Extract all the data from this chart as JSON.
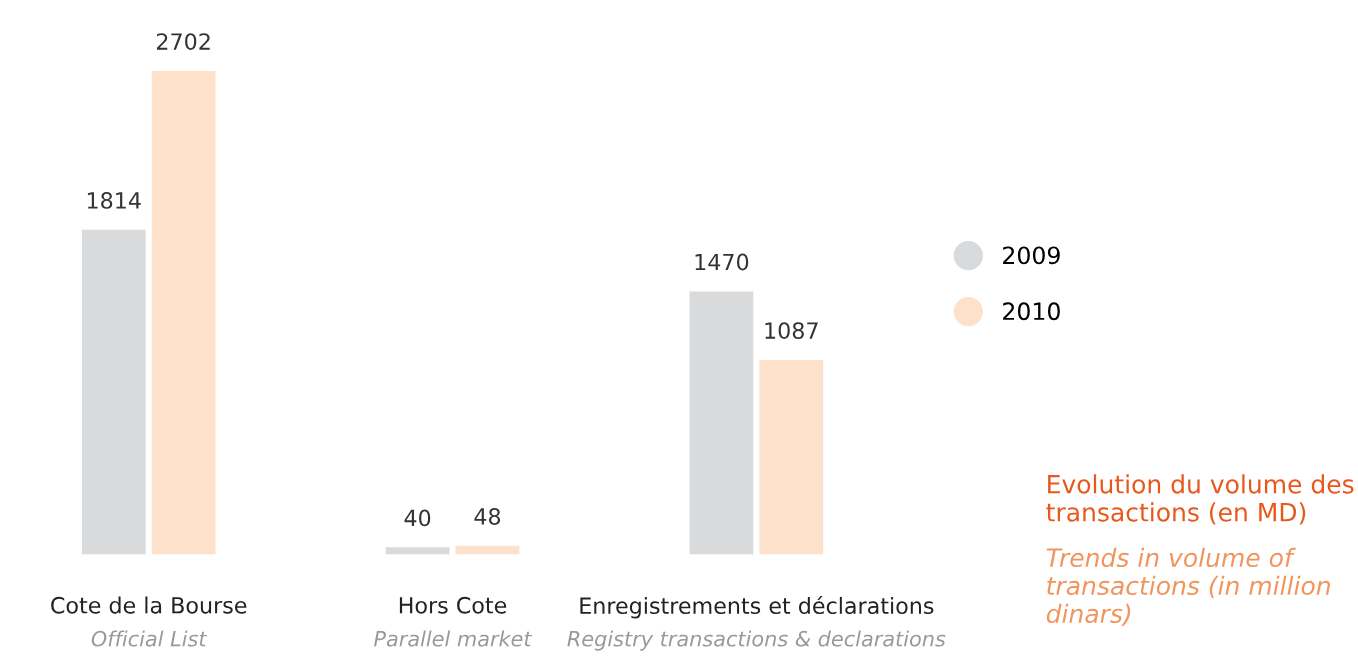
{
  "chart_data": {
    "type": "bar",
    "title": "Evolution du volume des transactions (en MD)",
    "subtitle": "Trends in volume of transactions (in million dinars)",
    "categories": [
      "Cote de la Bourse\nOfficial List",
      "Hors Cote\nParallel market",
      "Enregistrements et déclarations\nRegistry transactions & declarations"
    ],
    "series": [
      {
        "name": "2009",
        "color": "#d9dadb",
        "values": [
          1814,
          40,
          1470
        ]
      },
      {
        "name": "2010",
        "color": "#fde1cb",
        "values": [
          2702,
          48,
          1087
        ]
      }
    ],
    "data_labels": true,
    "legend": "right",
    "grid": false
  }
}
